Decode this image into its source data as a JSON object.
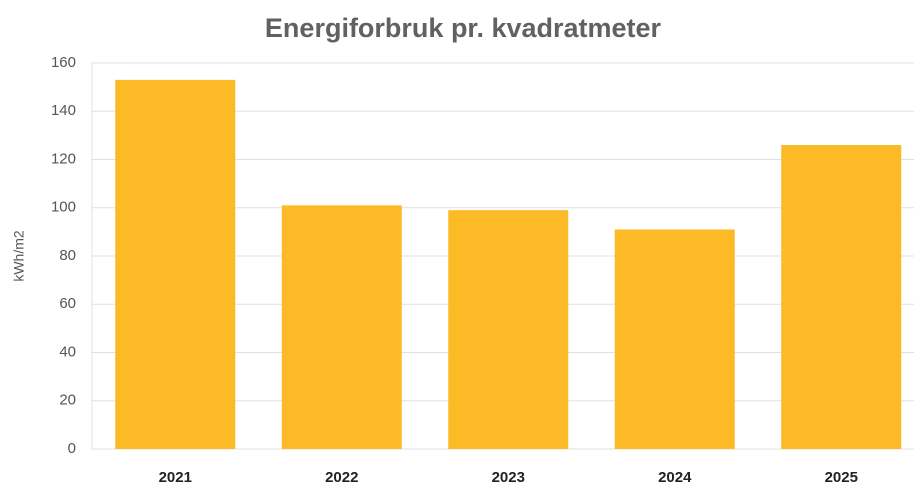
{
  "chart_data": {
    "type": "bar",
    "title": "Energiforbruk pr. kvadratmeter",
    "ylabel": "kWh/m2",
    "categories": [
      "2021",
      "2022",
      "2023",
      "2024",
      "2025"
    ],
    "values": [
      153,
      101,
      99,
      91,
      126
    ],
    "color": "#fbba26",
    "ylim": [
      0,
      160
    ],
    "yticks": [
      0,
      20,
      40,
      60,
      80,
      100,
      120,
      140,
      160
    ],
    "grid": true
  }
}
